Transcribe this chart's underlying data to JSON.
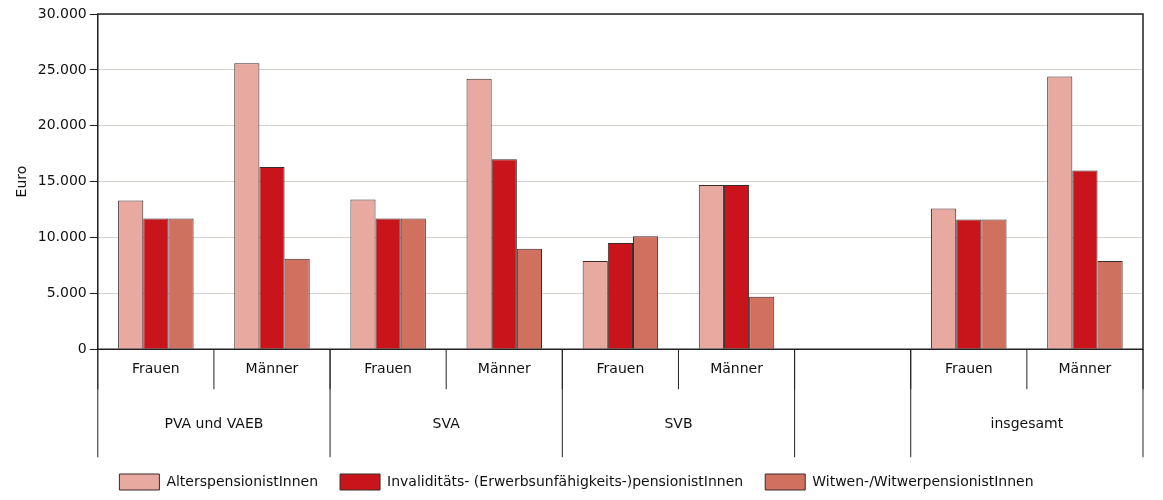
{
  "chart_data": {
    "type": "bar",
    "ylabel": "Euro",
    "categories": [
      "Frauen",
      "Männer",
      "Frauen",
      "Männer",
      "Frauen",
      "Männer",
      null,
      "Frauen",
      "Männer"
    ],
    "annotations": [
      "PVA und VAEB",
      "SVA",
      "SVB",
      "insgesamt"
    ],
    "series": [
      {
        "name": "AlterspensionistInnen",
        "color": "#e8aaa0",
        "values": [
          13300,
          25600,
          13400,
          24200,
          7900,
          14700,
          null,
          12600,
          24400
        ]
      },
      {
        "name": "Invaliditäts- (Erwerbsunfähigkeits-)pensionistInnen",
        "color": "#c8141a",
        "values": [
          11700,
          16300,
          11700,
          17000,
          9500,
          14700,
          null,
          11600,
          16000
        ]
      },
      {
        "name": "Witwen-/WitwerpensionistInnen",
        "color": "#d0705e",
        "values": [
          11700,
          8100,
          11700,
          9000,
          10100,
          4700,
          null,
          11600,
          7900
        ]
      }
    ],
    "ylim": [
      0,
      30000
    ],
    "yticks": [
      0,
      {
        "value": 5000,
        "label": "5.000"
      },
      {
        "value": 10000,
        "label": "10.000"
      },
      {
        "value": 15000,
        "label": "15.000"
      },
      {
        "value": 20000,
        "label": "20.000"
      },
      {
        "value": 25000,
        "label": "25.000"
      },
      {
        "value": 30000,
        "label": "30.000"
      }
    ],
    "grid": "y",
    "legend": "bottom"
  }
}
